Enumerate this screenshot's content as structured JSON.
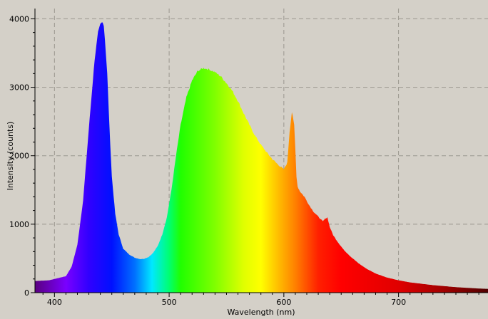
{
  "chart_data": {
    "type": "area",
    "title": "",
    "xlabel": "Wavelength (nm)",
    "ylabel": "Intensity (counts)",
    "xlim": [
      383,
      778
    ],
    "ylim": [
      0,
      4150
    ],
    "grid": true,
    "fill": "spectral rainbow by wavelength",
    "x_ticks": [
      400,
      500,
      600,
      700
    ],
    "y_ticks": [
      0,
      1000,
      2000,
      3000,
      4000
    ],
    "x_tick_labels": [
      "400",
      "500",
      "600",
      "700"
    ],
    "y_tick_labels": [
      "0",
      "1000",
      "2000",
      "3000",
      "4000"
    ],
    "series": [
      {
        "x": [
          383,
          395,
          410,
          415,
          420,
          425,
          430,
          435,
          438,
          440,
          442,
          443,
          444,
          446,
          448,
          450,
          453,
          456,
          460,
          465,
          470,
          475,
          478,
          482,
          486,
          490,
          494,
          498,
          502,
          506,
          510,
          515,
          520,
          525,
          530,
          535,
          540,
          545,
          550,
          555,
          560,
          565,
          570,
          575,
          580,
          585,
          590,
          595,
          600,
          603,
          605,
          607,
          609,
          610,
          611,
          612,
          614,
          618,
          622,
          626,
          630,
          634,
          636,
          638,
          640,
          643,
          647,
          652,
          658,
          665,
          672,
          680,
          690,
          700,
          710,
          720,
          730,
          740,
          750,
          760,
          770,
          778
        ],
        "y": [
          170,
          180,
          240,
          380,
          700,
          1350,
          2400,
          3400,
          3800,
          3920,
          3960,
          3900,
          3700,
          3200,
          2400,
          1700,
          1150,
          850,
          640,
          560,
          510,
          490,
          495,
          520,
          580,
          680,
          850,
          1100,
          1500,
          2000,
          2450,
          2850,
          3100,
          3240,
          3280,
          3260,
          3220,
          3160,
          3060,
          2950,
          2800,
          2620,
          2450,
          2290,
          2160,
          2050,
          1950,
          1870,
          1800,
          1900,
          2350,
          2640,
          2450,
          2100,
          1700,
          1550,
          1480,
          1400,
          1280,
          1180,
          1110,
          1040,
          1080,
          1100,
          960,
          840,
          740,
          630,
          530,
          430,
          350,
          280,
          220,
          180,
          150,
          130,
          110,
          95,
          80,
          70,
          60,
          55
        ]
      }
    ]
  }
}
